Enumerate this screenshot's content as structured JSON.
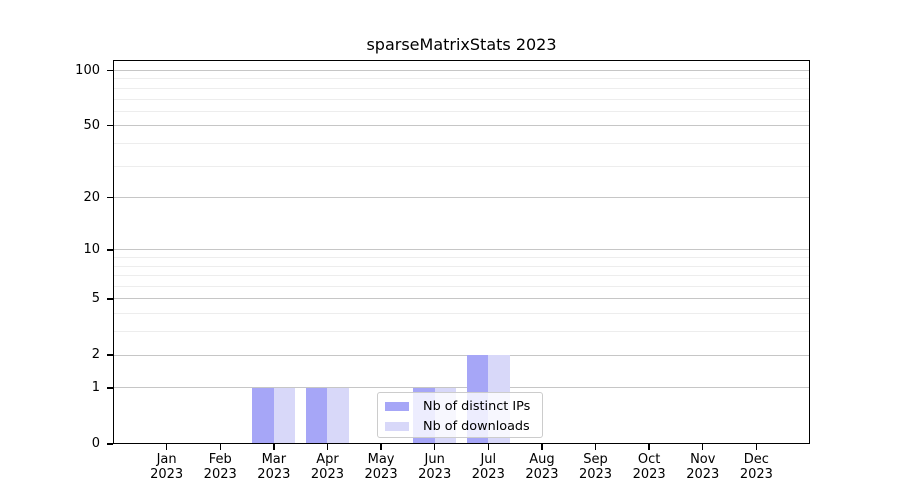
{
  "chart_data": {
    "type": "bar",
    "title": "sparseMatrixStats 2023",
    "categories": [
      "Jan",
      "Feb",
      "Mar",
      "Apr",
      "May",
      "Jun",
      "Jul",
      "Aug",
      "Sep",
      "Oct",
      "Nov",
      "Dec"
    ],
    "x_year_label": "2023",
    "series": [
      {
        "name": "Nb of distinct IPs",
        "color": "#a6a6f7",
        "values": [
          0,
          0,
          1,
          1,
          0,
          1,
          2,
          0,
          0,
          0,
          0,
          0
        ]
      },
      {
        "name": "Nb of downloads",
        "color": "#d8d8f9",
        "values": [
          0,
          0,
          1,
          1,
          0,
          1,
          2,
          0,
          0,
          0,
          0,
          0
        ]
      }
    ],
    "yscale": "log1p",
    "ylim": [
      0,
      114
    ],
    "yticks": [
      0,
      1,
      2,
      5,
      10,
      20,
      50,
      100
    ],
    "grid_lines": [
      1,
      2,
      3,
      4,
      5,
      6,
      7,
      8,
      9,
      10,
      20,
      30,
      40,
      50,
      60,
      70,
      80,
      90,
      100
    ],
    "grid": true,
    "legend": {
      "position": "inside lower center",
      "entries": [
        "Nb of distinct IPs",
        "Nb of downloads"
      ]
    },
    "xlabel": "",
    "ylabel": ""
  },
  "colors": {
    "background": "#ffffff",
    "axis": "#000000",
    "grid_major": "#c6c6c6",
    "grid_minor": "#ededed",
    "legend_border": "#cccccc",
    "legend_background": "rgba(255,255,255,0.8)"
  }
}
